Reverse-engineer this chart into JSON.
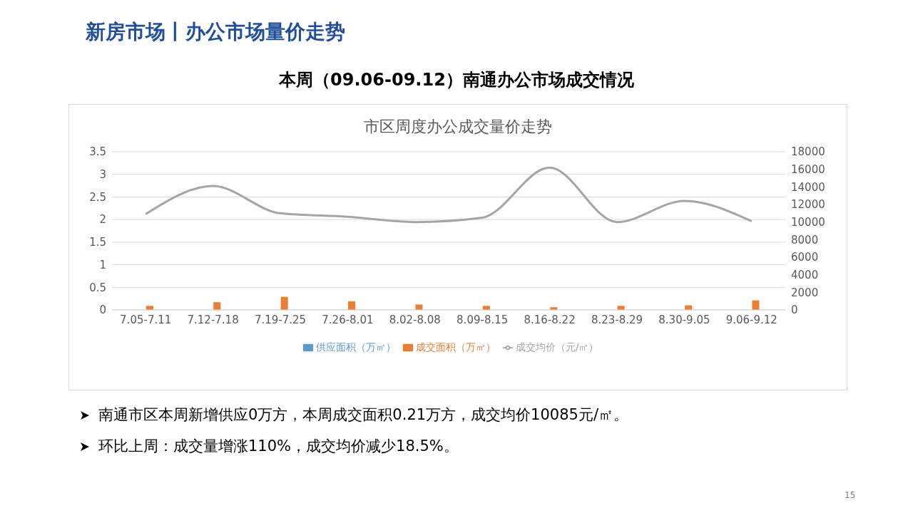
{
  "chart_data": {
    "type": "bar",
    "title": "市区周度办公成交量价走势",
    "subtitle": "本周（09.06-09.12）南通办公市场成交情况",
    "annotations": [
      "新房市场丨办公市场量价走势",
      "南通市区本周新增供应0万方，本周成交面积0.21万方，成交均价10085元/㎡。",
      "环比上周：成交量增涨110%，成交均价减少18.5%。",
      "15"
    ],
    "categories": [
      "7.05-7.11",
      "7.12-7.18",
      "7.19-7.25",
      "7.26-8.01",
      "8.02-8.08",
      "8.09-8.15",
      "8.16-8.22",
      "8.23-8.29",
      "8.30-9.05",
      "9.06-9.12"
    ],
    "series": [
      {
        "name": "供应面积（万㎡）",
        "color": "#5b9bd5",
        "values": [
          0,
          0,
          0,
          0,
          0,
          0,
          0,
          0,
          0,
          0
        ]
      },
      {
        "name": "成交面积（万㎡）",
        "color": "#ed7d31",
        "values": [
          0.09,
          0.17,
          0.29,
          0.19,
          0.12,
          0.09,
          0.06,
          0.09,
          0.1,
          0.21
        ]
      },
      {
        "name": "成交均价（元/㎡）",
        "type": "line",
        "axis": "y2",
        "color": "#a5a5a5",
        "values": [
          10900,
          14100,
          11000,
          10600,
          10000,
          10500,
          16200,
          10000,
          12400,
          10100
        ]
      }
    ],
    "ylim": [
      0,
      3.5
    ],
    "yticks": [
      0,
      0.5,
      1,
      1.5,
      2,
      2.5,
      3,
      3.5
    ],
    "y2lim": [
      0,
      18000
    ],
    "y2ticks": [
      0,
      2000,
      4000,
      6000,
      8000,
      10000,
      12000,
      14000,
      16000,
      18000
    ],
    "grid": "y",
    "legend": "bottom",
    "marker": "none"
  }
}
